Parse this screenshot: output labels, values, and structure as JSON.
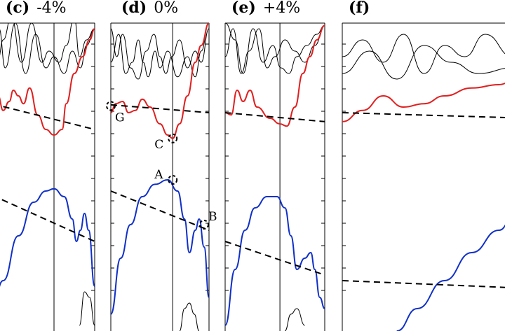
{
  "chart_data": [
    {
      "type": "line",
      "panel_id": "(c)",
      "strain": "-4%",
      "cut_off": "left",
      "series": [
        {
          "color": "#000000",
          "values": [
            [
              0.0,
              1.4
            ],
            [
              0.05,
              1.18
            ],
            [
              0.1,
              1.35
            ],
            [
              0.18,
              1.55
            ],
            [
              0.28,
              1.15
            ],
            [
              0.38,
              1.5
            ],
            [
              0.48,
              1.15
            ],
            [
              0.55,
              1.25
            ],
            [
              0.65,
              1.15
            ],
            [
              0.72,
              1.3
            ],
            [
              0.8,
              1.55
            ],
            [
              0.85,
              1.2
            ],
            [
              0.92,
              1.35
            ],
            [
              1.0,
              1.45
            ]
          ]
        },
        {
          "color": "#000000",
          "values": [
            [
              0.0,
              1.2
            ],
            [
              0.06,
              1.45
            ],
            [
              0.12,
              1.1
            ],
            [
              0.22,
              1.5
            ],
            [
              0.32,
              1.05
            ],
            [
              0.42,
              1.4
            ],
            [
              0.52,
              1.1
            ],
            [
              0.6,
              1.2
            ],
            [
              0.7,
              1.05
            ],
            [
              0.78,
              1.25
            ],
            [
              0.86,
              1.1
            ],
            [
              0.92,
              1.3
            ],
            [
              1.0,
              1.45
            ]
          ]
        },
        {
          "color": "#e02020",
          "values": [
            [
              0.0,
              0.92
            ],
            [
              0.05,
              0.85
            ],
            [
              0.1,
              0.72
            ],
            [
              0.16,
              0.8
            ],
            [
              0.2,
              0.9
            ],
            [
              0.25,
              0.85
            ],
            [
              0.3,
              0.78
            ],
            [
              0.36,
              0.92
            ],
            [
              0.44,
              0.68
            ],
            [
              0.52,
              0.55
            ],
            [
              0.6,
              0.5
            ],
            [
              0.68,
              0.55
            ],
            [
              0.72,
              0.78
            ],
            [
              0.8,
              1.05
            ],
            [
              0.88,
              1.2
            ],
            [
              0.95,
              1.35
            ],
            [
              1.0,
              1.45
            ]
          ]
        },
        {
          "color": "#1030c8",
          "values": [
            [
              0.0,
              -1.0
            ],
            [
              0.1,
              -0.8
            ],
            [
              0.25,
              -0.4
            ],
            [
              0.4,
              -0.1
            ],
            [
              0.52,
              0.0
            ],
            [
              0.6,
              0.02
            ],
            [
              0.7,
              -0.05
            ],
            [
              0.78,
              -0.25
            ],
            [
              0.82,
              -0.45
            ],
            [
              0.86,
              -0.35
            ],
            [
              0.9,
              -0.2
            ],
            [
              0.94,
              -0.35
            ],
            [
              1.0,
              -0.85
            ]
          ]
        },
        {
          "color": "#000000",
          "values": [
            [
              0.85,
              -1.2
            ],
            [
              0.9,
              -0.9
            ],
            [
              0.95,
              -0.95
            ],
            [
              1.0,
              -1.2
            ]
          ]
        }
      ],
      "vertical_markers": [
        0.6
      ],
      "dashed_lines": [
        {
          "values": [
            [
              -0.1,
              0.8
            ],
            [
              1.0,
              0.55
            ]
          ]
        },
        {
          "values": [
            [
              -0.1,
              0.0
            ],
            [
              1.0,
              -0.45
            ]
          ]
        }
      ],
      "points": [],
      "xlim": [
        0,
        1
      ],
      "ylim": [
        -1.25,
        1.5
      ]
    },
    {
      "type": "line",
      "panel_id": "(d)",
      "strain": "0%",
      "series": [
        {
          "color": "#000000",
          "values": [
            [
              0.0,
              1.15
            ],
            [
              0.08,
              1.4
            ],
            [
              0.15,
              1.05
            ],
            [
              0.22,
              1.15
            ],
            [
              0.28,
              1.35
            ],
            [
              0.33,
              1.15
            ],
            [
              0.38,
              1.02
            ],
            [
              0.45,
              1.25
            ],
            [
              0.5,
              1.1
            ],
            [
              0.58,
              1.25
            ],
            [
              0.68,
              1.02
            ],
            [
              0.78,
              1.2
            ],
            [
              0.86,
              1.02
            ],
            [
              0.92,
              1.25
            ],
            [
              1.0,
              1.5
            ]
          ]
        },
        {
          "color": "#000000",
          "values": [
            [
              0.0,
              1.45
            ],
            [
              0.06,
              1.2
            ],
            [
              0.12,
              1.4
            ],
            [
              0.2,
              1.1
            ],
            [
              0.28,
              1.0
            ],
            [
              0.36,
              1.25
            ],
            [
              0.44,
              1.4
            ],
            [
              0.5,
              1.2
            ],
            [
              0.56,
              1.05
            ],
            [
              0.62,
              1.2
            ],
            [
              0.7,
              1.35
            ],
            [
              0.78,
              1.1
            ],
            [
              0.86,
              1.25
            ],
            [
              0.92,
              1.15
            ],
            [
              1.0,
              1.45
            ]
          ]
        },
        {
          "color": "#e02020",
          "values": [
            [
              0.0,
              0.7
            ],
            [
              0.05,
              0.78
            ],
            [
              0.12,
              0.8
            ],
            [
              0.18,
              0.7
            ],
            [
              0.25,
              0.72
            ],
            [
              0.32,
              0.82
            ],
            [
              0.4,
              0.75
            ],
            [
              0.5,
              0.6
            ],
            [
              0.58,
              0.5
            ],
            [
              0.63,
              0.47
            ],
            [
              0.7,
              0.6
            ],
            [
              0.78,
              0.85
            ],
            [
              0.86,
              1.15
            ],
            [
              0.92,
              1.3
            ],
            [
              1.0,
              1.5
            ]
          ]
        },
        {
          "color": "#1030c8",
          "values": [
            [
              0.0,
              -1.1
            ],
            [
              0.1,
              -0.6
            ],
            [
              0.2,
              -0.3
            ],
            [
              0.32,
              -0.05
            ],
            [
              0.45,
              0.06
            ],
            [
              0.58,
              0.1
            ],
            [
              0.68,
              0.0
            ],
            [
              0.75,
              -0.25
            ],
            [
              0.8,
              -0.55
            ],
            [
              0.86,
              -0.35
            ],
            [
              0.9,
              -0.25
            ],
            [
              0.95,
              -0.5
            ],
            [
              1.0,
              -0.95
            ]
          ]
        },
        {
          "color": "#000000",
          "values": [
            [
              0.7,
              -1.25
            ],
            [
              0.75,
              -1.05
            ],
            [
              0.8,
              -1.0
            ],
            [
              0.85,
              -1.1
            ],
            [
              0.9,
              -1.25
            ]
          ]
        }
      ],
      "vertical_markers": [
        0.63
      ],
      "dashed_lines": [
        {
          "values": [
            [
              0.0,
              0.77
            ],
            [
              1.0,
              0.7
            ]
          ]
        },
        {
          "values": [
            [
              0.0,
              0.0
            ],
            [
              1.0,
              -0.35
            ]
          ]
        }
      ],
      "points": [
        {
          "label": "G",
          "x": 0.0,
          "y": 0.76
        },
        {
          "label": "C",
          "x": 0.63,
          "y": 0.47
        },
        {
          "label": "A",
          "x": 0.63,
          "y": 0.1
        },
        {
          "label": "B",
          "x": 0.95,
          "y": -0.3
        }
      ],
      "xlim": [
        0,
        1
      ],
      "ylim": [
        -1.25,
        1.5
      ]
    },
    {
      "type": "line",
      "panel_id": "(e)",
      "strain": "+4%",
      "series": [
        {
          "color": "#000000",
          "values": [
            [
              0.0,
              1.5
            ],
            [
              0.1,
              1.35
            ],
            [
              0.18,
              1.05
            ],
            [
              0.28,
              1.45
            ],
            [
              0.38,
              1.15
            ],
            [
              0.48,
              1.3
            ],
            [
              0.56,
              1.1
            ],
            [
              0.64,
              1.05
            ],
            [
              0.72,
              1.2
            ],
            [
              0.82,
              1.3
            ],
            [
              0.92,
              1.4
            ],
            [
              1.0,
              1.48
            ]
          ]
        },
        {
          "color": "#000000",
          "values": [
            [
              0.0,
              1.2
            ],
            [
              0.08,
              1.45
            ],
            [
              0.16,
              1.05
            ],
            [
              0.24,
              1.25
            ],
            [
              0.34,
              1.45
            ],
            [
              0.42,
              1.1
            ],
            [
              0.5,
              1.2
            ],
            [
              0.6,
              1.35
            ],
            [
              0.7,
              1.25
            ],
            [
              0.8,
              1.15
            ],
            [
              0.9,
              1.3
            ],
            [
              1.0,
              1.48
            ]
          ]
        },
        {
          "color": "#e02020",
          "values": [
            [
              0.0,
              0.7
            ],
            [
              0.06,
              0.68
            ],
            [
              0.12,
              0.9
            ],
            [
              0.18,
              0.8
            ],
            [
              0.25,
              0.9
            ],
            [
              0.32,
              0.75
            ],
            [
              0.45,
              0.65
            ],
            [
              0.55,
              0.6
            ],
            [
              0.62,
              0.58
            ],
            [
              0.7,
              0.75
            ],
            [
              0.78,
              1.05
            ],
            [
              0.85,
              1.2
            ],
            [
              0.92,
              1.35
            ],
            [
              1.0,
              1.48
            ]
          ]
        },
        {
          "color": "#1030c8",
          "values": [
            [
              0.0,
              -1.2
            ],
            [
              0.1,
              -0.7
            ],
            [
              0.2,
              -0.35
            ],
            [
              0.3,
              -0.15
            ],
            [
              0.42,
              -0.05
            ],
            [
              0.52,
              -0.05
            ],
            [
              0.6,
              -0.15
            ],
            [
              0.66,
              -0.4
            ],
            [
              0.72,
              -0.7
            ],
            [
              0.8,
              -0.6
            ],
            [
              0.86,
              -0.55
            ],
            [
              0.9,
              -0.7
            ],
            [
              0.95,
              -0.95
            ],
            [
              1.0,
              -1.05
            ]
          ]
        },
        {
          "color": "#000000",
          "values": [
            [
              0.6,
              -1.25
            ],
            [
              0.66,
              -1.1
            ],
            [
              0.72,
              -1.05
            ],
            [
              0.8,
              -1.2
            ]
          ]
        }
      ],
      "vertical_markers": [
        0.55
      ],
      "dashed_lines": [
        {
          "values": [
            [
              0.0,
              0.7
            ],
            [
              1.0,
              0.62
            ]
          ]
        },
        {
          "values": [
            [
              0.0,
              -0.45
            ],
            [
              1.0,
              -0.75
            ]
          ]
        }
      ],
      "points": [],
      "xlim": [
        0,
        1
      ],
      "ylim": [
        -1.25,
        1.5
      ]
    },
    {
      "type": "line",
      "panel_id": "(f)",
      "cut_off": "right",
      "series": [
        {
          "color": "#000000",
          "values": [
            [
              0.0,
              1.2
            ],
            [
              0.06,
              1.35
            ],
            [
              0.12,
              1.15
            ],
            [
              0.18,
              1.4
            ],
            [
              0.24,
              1.05
            ],
            [
              0.3,
              1.3
            ],
            [
              0.36,
              1.2
            ],
            [
              0.42,
              1.4
            ],
            [
              0.5,
              1.2
            ]
          ]
        },
        {
          "color": "#000000",
          "values": [
            [
              0.0,
              1.05
            ],
            [
              0.08,
              1.25
            ],
            [
              0.16,
              1.0
            ],
            [
              0.24,
              1.3
            ],
            [
              0.32,
              1.15
            ],
            [
              0.4,
              1.05
            ],
            [
              0.5,
              1.1
            ]
          ]
        },
        {
          "color": "#e02020",
          "values": [
            [
              0.0,
              0.62
            ],
            [
              0.06,
              0.72
            ],
            [
              0.12,
              0.85
            ],
            [
              0.18,
              0.75
            ],
            [
              0.24,
              0.78
            ],
            [
              0.3,
              0.85
            ],
            [
              0.38,
              0.92
            ],
            [
              0.46,
              0.95
            ],
            [
              0.5,
              0.98
            ]
          ]
        },
        {
          "color": "#1030c8",
          "values": [
            [
              0.16,
              -1.25
            ],
            [
              0.22,
              -1.05
            ],
            [
              0.3,
              -0.8
            ],
            [
              0.38,
              -0.55
            ],
            [
              0.46,
              -0.35
            ],
            [
              0.5,
              -0.25
            ]
          ]
        }
      ],
      "vertical_markers": [],
      "dashed_lines": [
        {
          "values": [
            [
              0.0,
              0.7
            ],
            [
              0.55,
              0.65
            ]
          ]
        },
        {
          "values": [
            [
              0.0,
              -0.8
            ],
            [
              0.55,
              -0.87
            ]
          ]
        }
      ],
      "points": [],
      "xlim": [
        0,
        0.55
      ],
      "ylim": [
        -1.25,
        1.5
      ]
    }
  ]
}
